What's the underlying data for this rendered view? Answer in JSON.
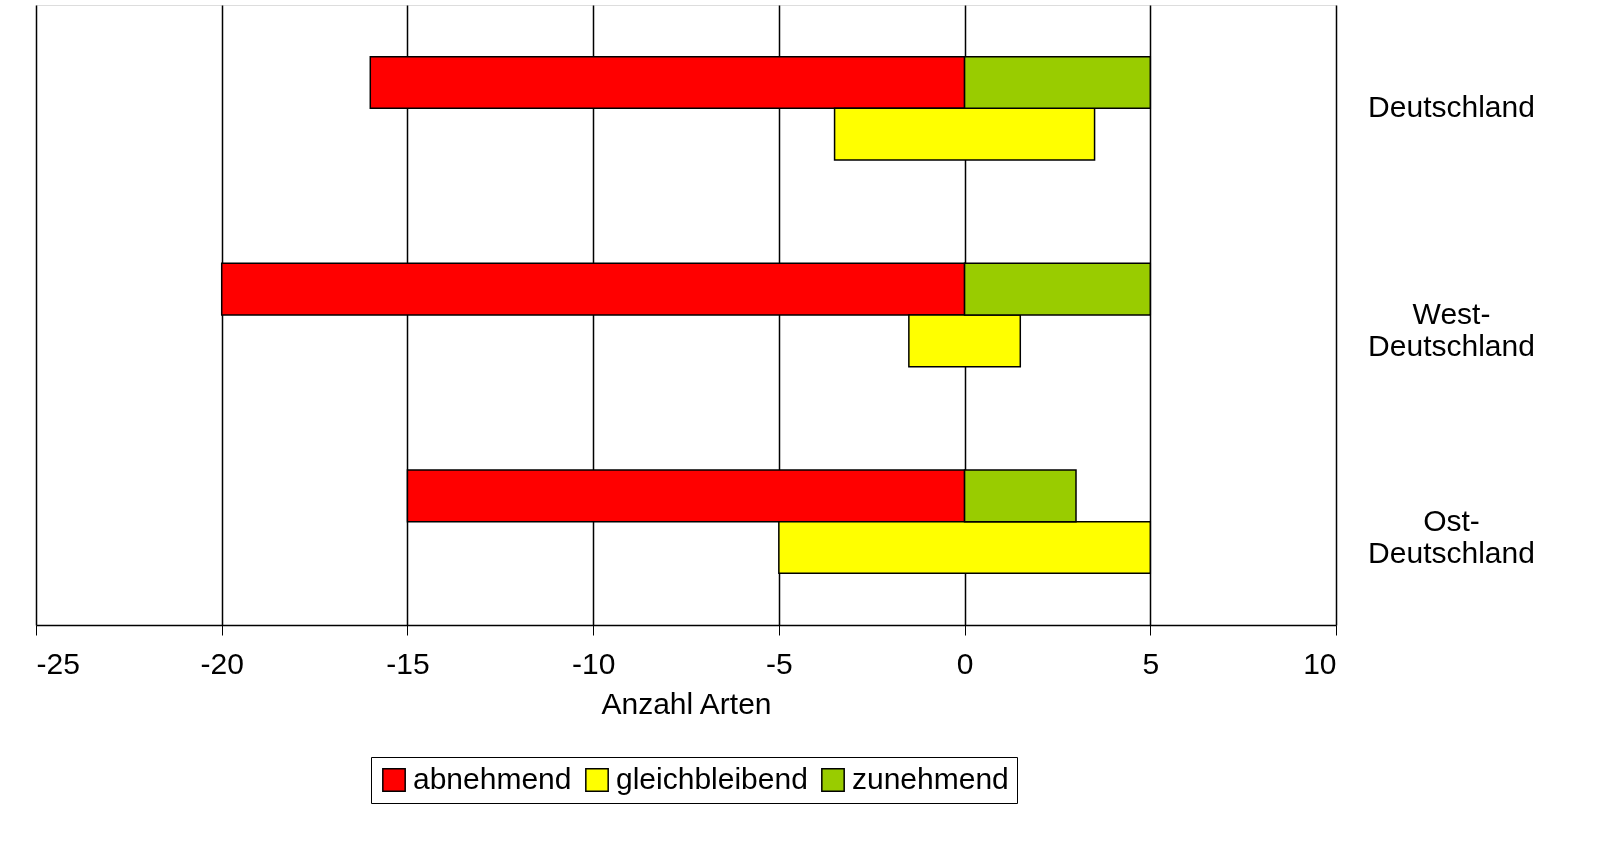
{
  "chart_data": {
    "type": "bar",
    "orientation": "horizontal",
    "xlabel": "Anzahl Arten",
    "categories": [
      "Deutschland",
      "West-Deutschland",
      "Ost-Deutschland"
    ],
    "series": [
      {
        "name": "abnehmend",
        "color": "#ff0000",
        "values": [
          -16,
          -20,
          -15
        ],
        "base": [
          0,
          0,
          0
        ]
      },
      {
        "name": "gleichbleibend",
        "color": "#ffff00",
        "values": [
          7,
          3,
          10
        ],
        "base": [
          -3.5,
          -1.5,
          -5
        ]
      },
      {
        "name": "zunehmend",
        "color": "#99cc00",
        "values": [
          5,
          5,
          3
        ],
        "base": [
          0,
          0,
          0
        ]
      }
    ],
    "xlim": [
      -25,
      10
    ],
    "xticks": [
      -25,
      -20,
      -15,
      -10,
      -5,
      0,
      5,
      10
    ],
    "grid": "x",
    "legend": "bottom"
  }
}
